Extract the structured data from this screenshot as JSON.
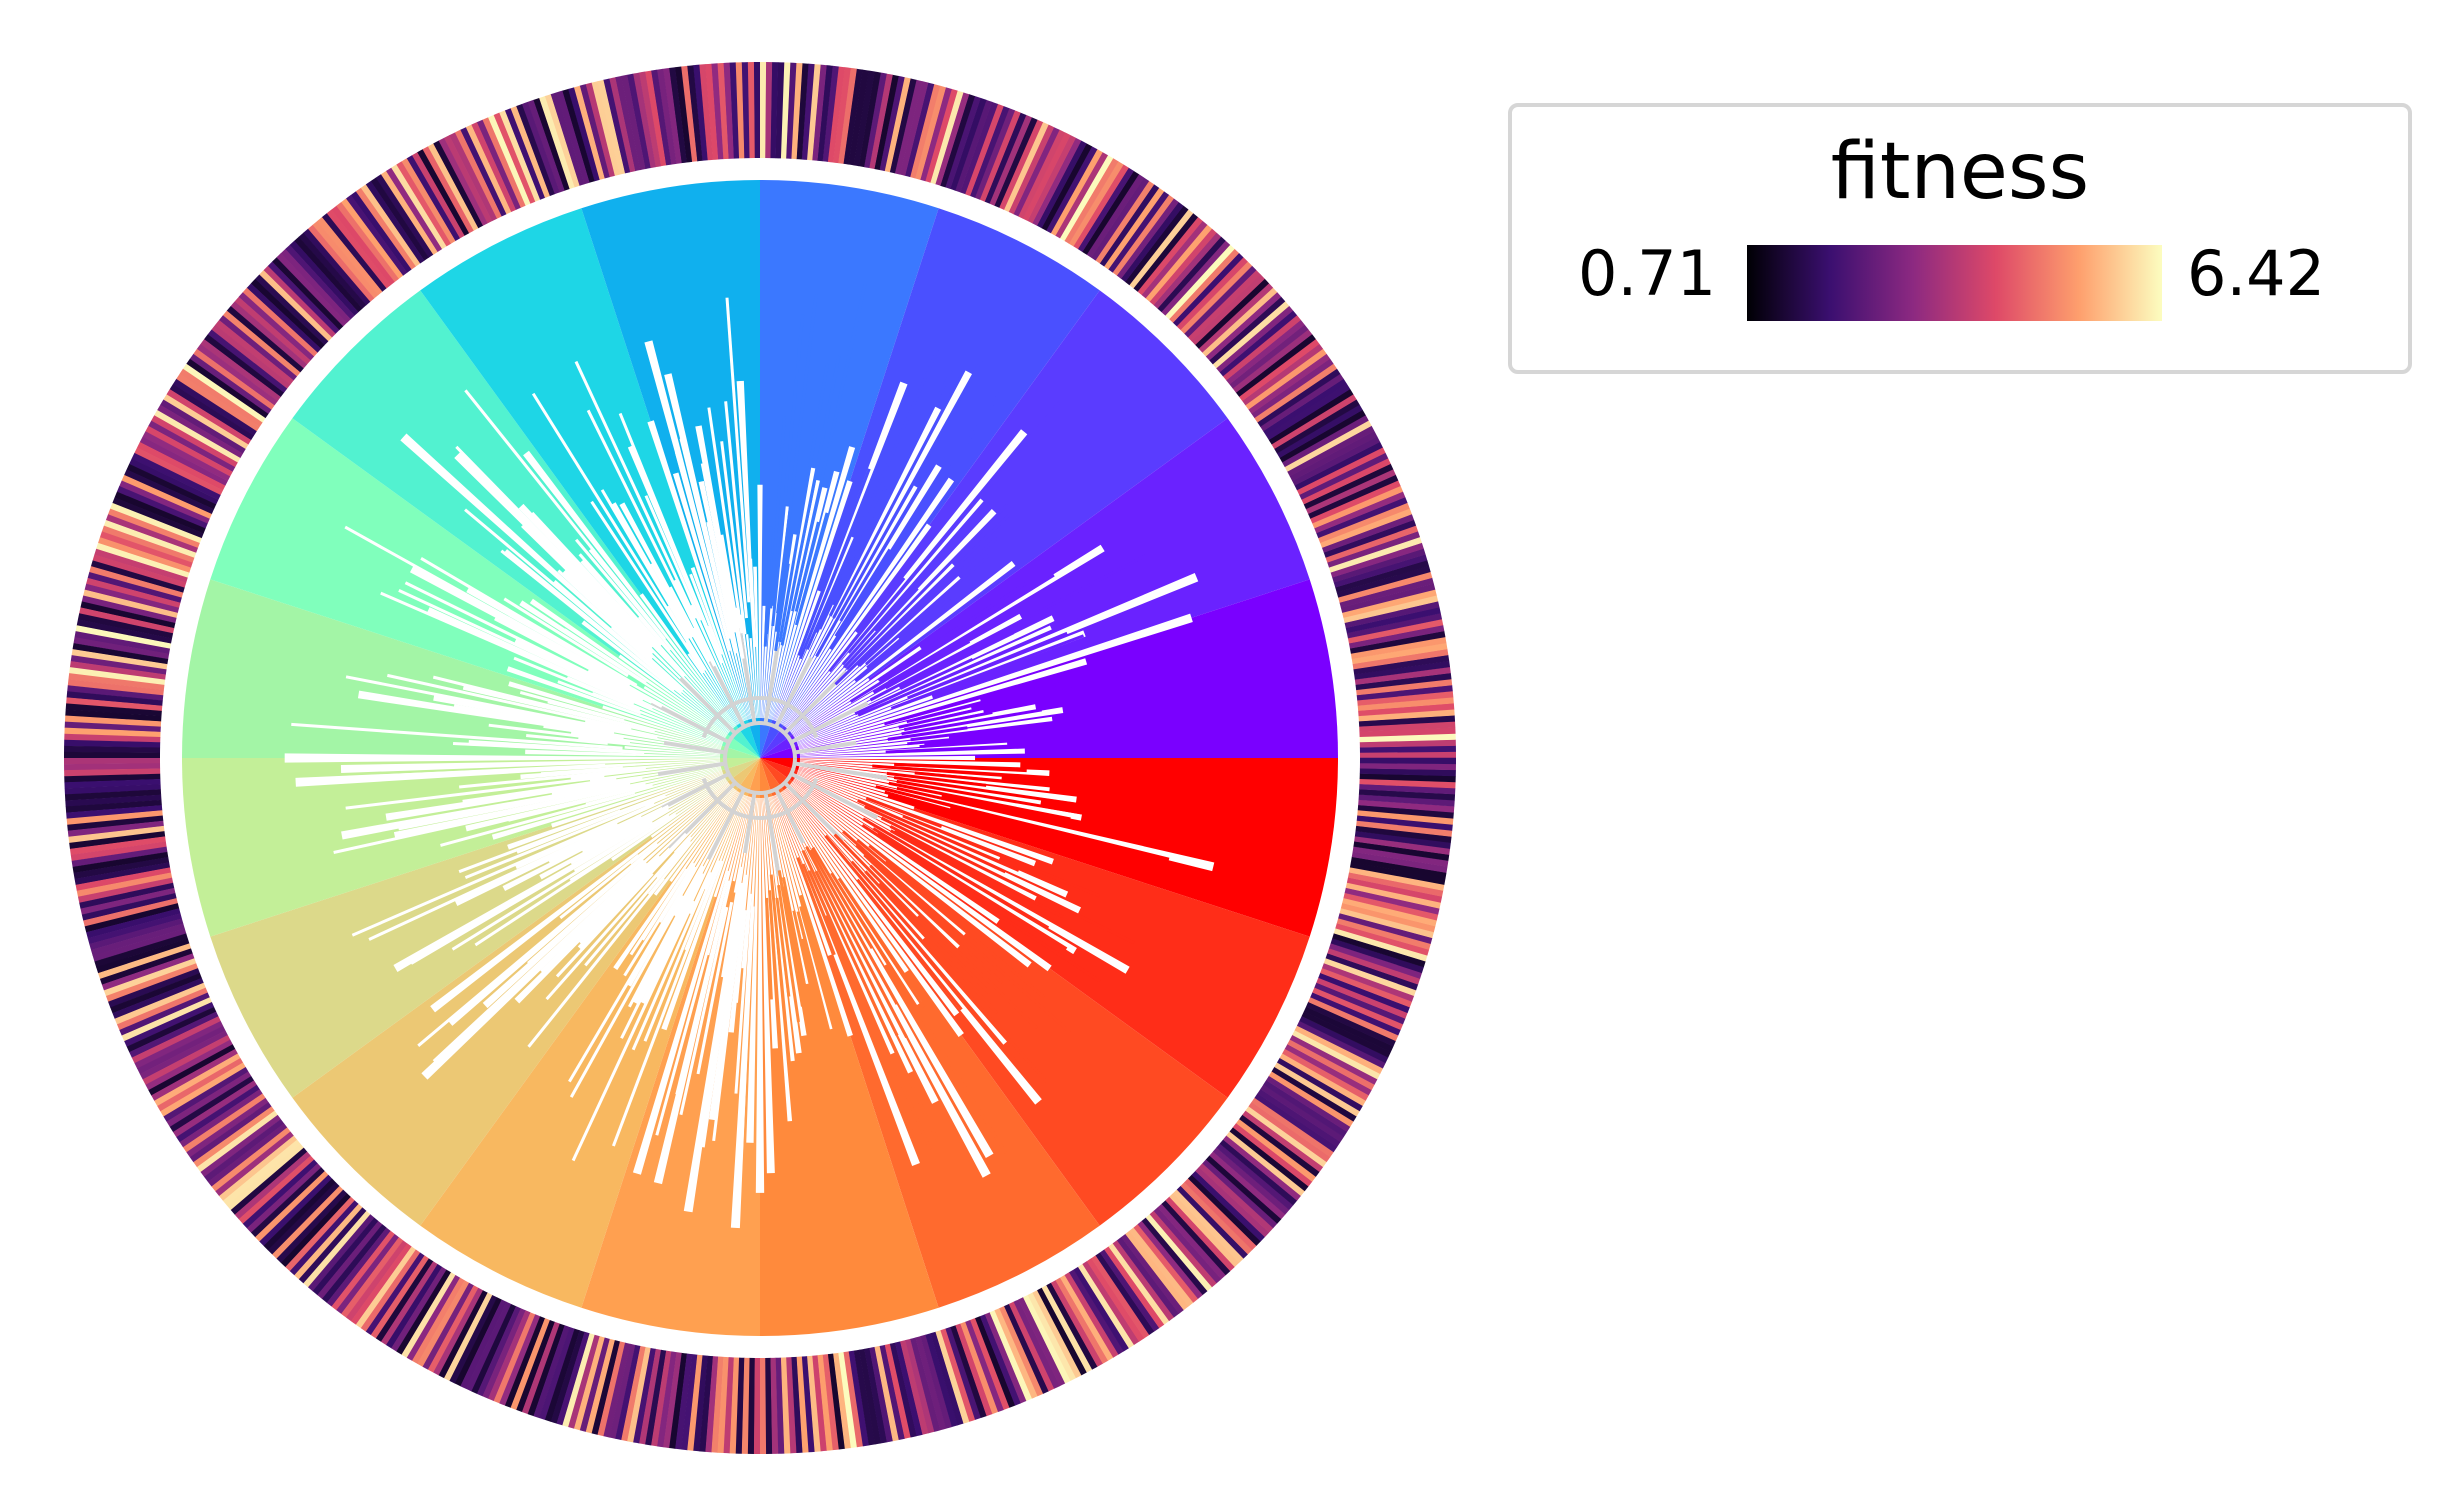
{
  "chart_data": {
    "type": "circular-phylogenetic-tree",
    "legend": {
      "title": "fitness",
      "min_label": "0.71",
      "max_label": "6.42",
      "min": 0.71,
      "max": 6.42,
      "colormap": [
        "#000004",
        "#3b0f70",
        "#8c2981",
        "#de4968",
        "#fe9f6d",
        "#fcfdbf"
      ]
    },
    "clade_colors": [
      "#ff0000",
      "#ff2d18",
      "#ff4a22",
      "#ff6a2e",
      "#ff8a3c",
      "#ffa050",
      "#f8b860",
      "#ecc874",
      "#dcd98a",
      "#c3ef98",
      "#a3f5a6",
      "#80ffbc",
      "#52f2d0",
      "#1ed6e6",
      "#10b0ee",
      "#3b78ff",
      "#4a50ff",
      "#5a3cff",
      "#6a22ff",
      "#7a00ff"
    ],
    "sector_boundaries_deg": [
      0,
      18,
      36,
      54,
      72,
      90,
      108,
      126,
      144,
      162,
      180,
      198,
      216,
      234,
      252,
      270,
      288,
      306,
      324,
      342,
      360
    ],
    "branch_color": "#d3d3d3"
  }
}
